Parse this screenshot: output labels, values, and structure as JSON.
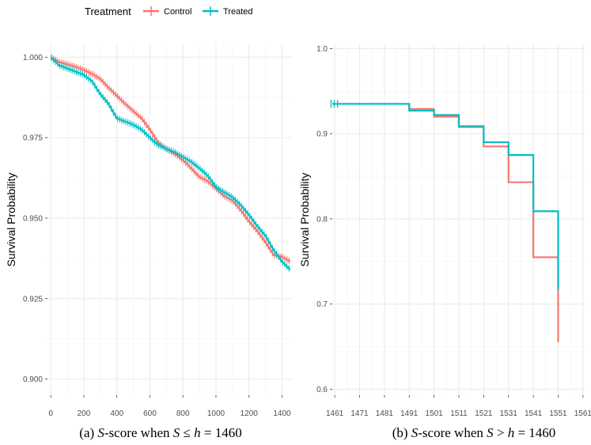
{
  "legend": {
    "title": "Treatment",
    "items": [
      {
        "name": "Control",
        "color": "#F8766D"
      },
      {
        "name": "Treated",
        "color": "#00BFC4"
      }
    ]
  },
  "captions": {
    "a": {
      "prefix": "(a) ",
      "s": "S",
      "mid": "-score when ",
      "s2": "S",
      "rel": " ≤ ",
      "h": "h",
      "eq": " = 1460"
    },
    "b": {
      "prefix": "(b) ",
      "s": "S",
      "mid": "-score when ",
      "s2": "S",
      "rel": " > ",
      "h": "h",
      "eq": " = 1460"
    }
  },
  "chart_data": [
    {
      "type": "line",
      "panel": "a",
      "ylabel": "Survival Probability",
      "xlabel": "",
      "xlim": [
        -20,
        1460
      ],
      "ylim": [
        0.895,
        1.004
      ],
      "xticks": [
        0,
        200,
        400,
        600,
        800,
        1000,
        1200,
        1400
      ],
      "yticks": [
        0.9,
        0.925,
        0.95,
        0.975,
        1.0
      ],
      "ytick_labels": [
        "0.900",
        "0.925",
        "0.950",
        "0.975",
        "1.000"
      ],
      "xtick_labels": [
        "0",
        "200",
        "400",
        "600",
        "800",
        "1000",
        "1200",
        "1400"
      ],
      "grid": true,
      "series": [
        {
          "name": "Control",
          "color": "#F8766D",
          "x": [
            0,
            50,
            100,
            150,
            200,
            250,
            300,
            350,
            400,
            450,
            500,
            550,
            600,
            650,
            700,
            750,
            800,
            850,
            900,
            950,
            1000,
            1050,
            1100,
            1150,
            1200,
            1250,
            1300,
            1350,
            1400,
            1450
          ],
          "y": [
            1.0,
            0.9985,
            0.9978,
            0.997,
            0.996,
            0.9948,
            0.9932,
            0.9905,
            0.988,
            0.9855,
            0.9832,
            0.981,
            0.9775,
            0.9735,
            0.9715,
            0.97,
            0.968,
            0.9655,
            0.9628,
            0.9615,
            0.9592,
            0.9568,
            0.9555,
            0.9525,
            0.949,
            0.946,
            0.9425,
            0.9385,
            0.938,
            0.9365
          ]
        },
        {
          "name": "Treated",
          "color": "#00BFC4",
          "x": [
            0,
            50,
            100,
            150,
            200,
            250,
            300,
            350,
            400,
            450,
            500,
            550,
            600,
            650,
            700,
            750,
            800,
            850,
            900,
            950,
            1000,
            1050,
            1100,
            1150,
            1200,
            1250,
            1300,
            1350,
            1400,
            1450
          ],
          "y": [
            1.0,
            0.9975,
            0.9965,
            0.9955,
            0.9945,
            0.9925,
            0.9885,
            0.9855,
            0.981,
            0.98,
            0.979,
            0.9775,
            0.975,
            0.9727,
            0.9715,
            0.9705,
            0.969,
            0.9675,
            0.9655,
            0.9632,
            0.9597,
            0.958,
            0.9565,
            0.954,
            0.951,
            0.9475,
            0.9445,
            0.94,
            0.9365,
            0.934
          ]
        }
      ]
    },
    {
      "type": "line",
      "panel": "b",
      "step": true,
      "ylabel": "Survival Probability",
      "xlabel": "",
      "xlim": [
        1460,
        1562
      ],
      "ylim": [
        0.593,
        1.005
      ],
      "xticks": [
        1461,
        1471,
        1481,
        1491,
        1501,
        1511,
        1521,
        1531,
        1541,
        1551,
        1561
      ],
      "yticks": [
        0.6,
        0.7,
        0.8,
        0.9,
        1.0
      ],
      "ytick_labels": [
        "0.6",
        "0.7",
        "0.8",
        "0.9",
        "1.0"
      ],
      "xtick_labels": [
        "1461",
        "1471",
        "1481",
        "1491",
        "1501",
        "1511",
        "1521",
        "1531",
        "1541",
        "1551",
        "1561"
      ],
      "grid": true,
      "series": [
        {
          "name": "Control",
          "color": "#F8766D",
          "x": [
            1460,
            1491,
            1501,
            1511,
            1521,
            1531,
            1541,
            1551,
            1551
          ],
          "y": [
            0.935,
            0.929,
            0.92,
            0.909,
            0.885,
            0.843,
            0.755,
            0.715,
            0.655
          ]
        },
        {
          "name": "Treated",
          "color": "#00BFC4",
          "x": [
            1460,
            1491,
            1501,
            1511,
            1521,
            1531,
            1541,
            1551
          ],
          "y": [
            0.935,
            0.927,
            0.922,
            0.908,
            0.89,
            0.875,
            0.809,
            0.717
          ]
        }
      ]
    }
  ]
}
